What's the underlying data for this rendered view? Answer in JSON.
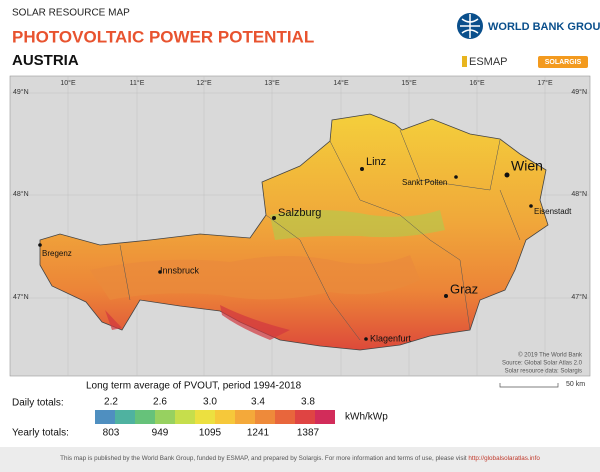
{
  "header": {
    "category": "SOLAR RESOURCE MAP",
    "title": "PHOTOVOLTAIC POWER POTENTIAL",
    "country": "AUSTRIA",
    "logos": [
      "WORLD BANK GROUP",
      "ESMAP",
      "SOLARGIS"
    ]
  },
  "map": {
    "longitudes": [
      "10°E",
      "11°E",
      "12°E",
      "13°E",
      "14°E",
      "15°E",
      "16°E",
      "17°E"
    ],
    "latitudes": [
      "49°N",
      "48°N",
      "47°N"
    ],
    "cities": [
      "Linz",
      "Wien",
      "Sankt Polten",
      "Salzburg",
      "Eisenstadt",
      "Bregenz",
      "Innsbruck",
      "Graz",
      "Klagenfurt"
    ],
    "credits": [
      "© 2019 The World Bank",
      "Source: Global Solar Atlas 2.0",
      "Solar resource data: Solargis"
    ],
    "scale": "50 km"
  },
  "legend": {
    "title": "Long term average of PVOUT, period 1994-2018",
    "daily_label": "Daily totals:",
    "daily_values": [
      "2.2",
      "2.6",
      "3.0",
      "3.4",
      "3.8"
    ],
    "unit": "kWh/kWp",
    "yearly_label": "Yearly totals:",
    "yearly_values": [
      "803",
      "949",
      "1095",
      "1241",
      "1387"
    ]
  },
  "footer": {
    "text": "This map is published by the World Bank Group, funded by ESMAP, and prepared by Solargis. For more information and terms of use, please visit ",
    "link": "http://globalsolaratlas.info"
  }
}
